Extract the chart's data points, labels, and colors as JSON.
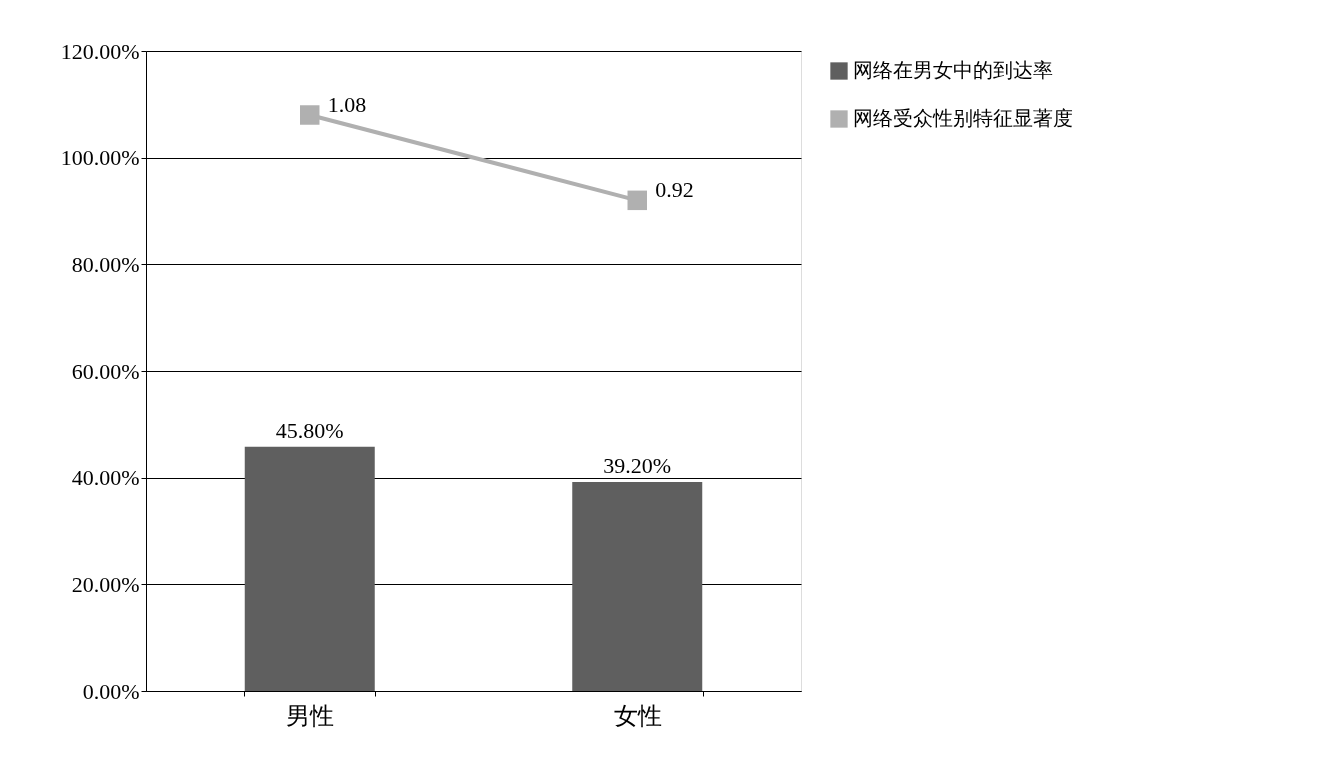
{
  "chart_data": {
    "type": "bar",
    "categories": [
      "男性",
      "女性"
    ],
    "series": [
      {
        "name": "网络在男女中的到达率",
        "color": "#5f5f5f",
        "values": [
          45.8,
          39.2
        ],
        "value_labels": [
          "45.80%",
          "39.20%"
        ]
      },
      {
        "type": "line",
        "name": "网络受众性别特征显著度",
        "color": "#b0b0b0",
        "values": [
          1.08,
          0.92
        ],
        "value_labels": [
          "1.08",
          "0.92"
        ],
        "marker": "square",
        "axis": "y2"
      }
    ],
    "ylim": [
      0,
      120
    ],
    "y2lim": [
      0,
      1.2
    ],
    "yticks": [
      {
        "value": 0,
        "label": "0.00%"
      },
      {
        "value": 20,
        "label": "20.00%"
      },
      {
        "value": 40,
        "label": "40.00%"
      },
      {
        "value": 60,
        "label": "60.00%"
      },
      {
        "value": 80,
        "label": "80.00%"
      },
      {
        "value": 100,
        "label": "100.00%"
      },
      {
        "value": 120,
        "label": "120.00%"
      }
    ],
    "grid": "y",
    "legend": "right"
  }
}
